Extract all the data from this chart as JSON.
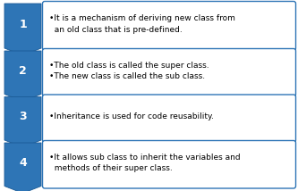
{
  "items": [
    {
      "number": "1",
      "text": "•It is a mechanism of deriving new class from\n  an old class that is pre-defined."
    },
    {
      "number": "2",
      "text": "•The old class is called the super class.\n•The new class is called the sub class."
    },
    {
      "number": "3",
      "text": "•Inheritance is used for code reusability."
    },
    {
      "number": "4",
      "text": "•It allows sub class to inherit the variables and\n  methods of their super class."
    }
  ],
  "arrow_color": "#2E75B6",
  "arrow_edge": "#1A5A96",
  "box_fill": "#FFFFFF",
  "box_edge": "#2E75B6",
  "number_color": "#FFFFFF",
  "text_color": "#000000",
  "background_color": "#FFFFFF",
  "fig_width": 3.33,
  "fig_height": 2.14,
  "dpi": 100
}
